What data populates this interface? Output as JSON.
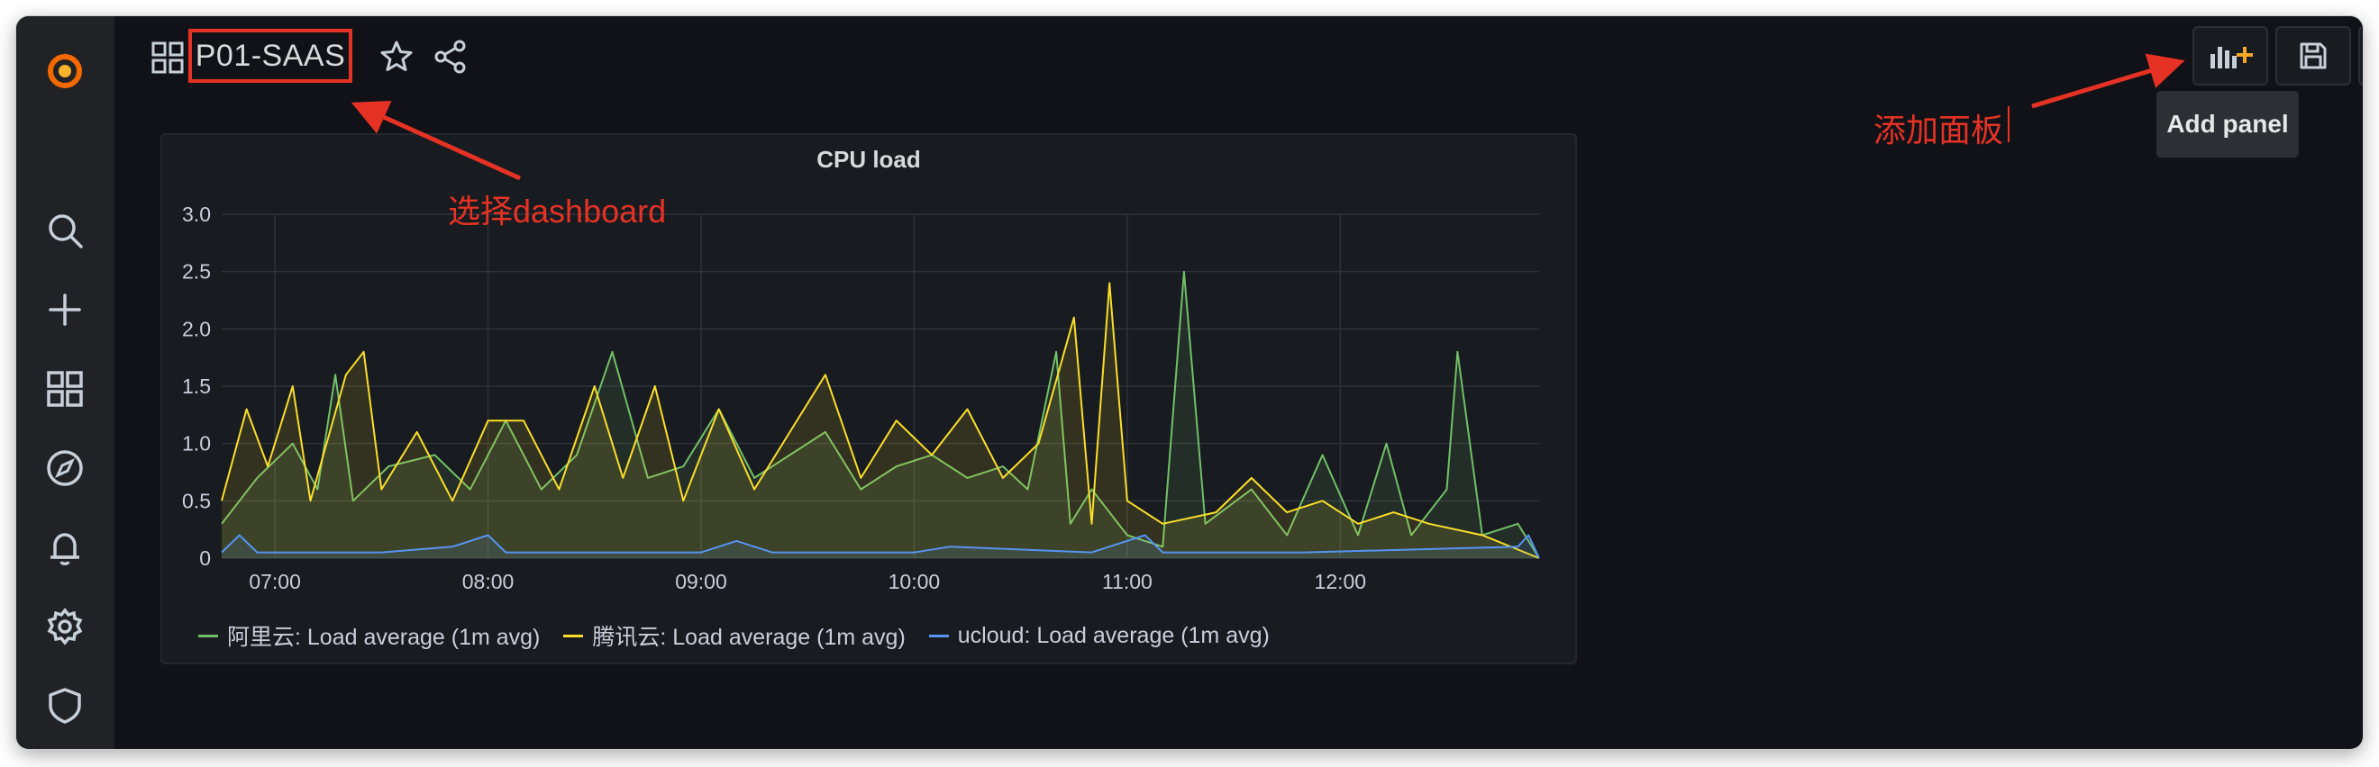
{
  "sidebar": {
    "icons": [
      "grafana-logo-icon",
      "search-icon",
      "plus-icon",
      "dashboards-icon",
      "explore-icon",
      "alerting-icon",
      "gear-icon",
      "shield-icon"
    ]
  },
  "header": {
    "title": "P01-SAAS",
    "tooltip": "Add panel"
  },
  "annotations": {
    "select_dashboard": "选择dashboard",
    "add_panel": "添加面板"
  },
  "colors": {
    "aliyun": "#73bf69",
    "tencent": "#fade2a",
    "ucloud": "#5794f2",
    "annotation": "#e53225",
    "panel_bg": "#181b1f"
  },
  "chart_data": {
    "type": "line",
    "title": "CPU load",
    "x_ticks": [
      "07:00",
      "08:00",
      "09:00",
      "10:00",
      "11:00",
      "12:00"
    ],
    "x_range": [
      "06:45",
      "12:56"
    ],
    "y_ticks": [
      "0",
      "0.5",
      "1.0",
      "1.5",
      "2.0",
      "2.5",
      "3.0"
    ],
    "ylim": [
      0,
      3.0
    ],
    "grid": true,
    "legend_position": "bottom-left",
    "series": [
      {
        "name": "阿里云: Load average (1m avg)",
        "color": "#73bf69",
        "points": [
          [
            "06:45",
            0.3
          ],
          [
            "06:55",
            0.7
          ],
          [
            "07:05",
            1.0
          ],
          [
            "07:12",
            0.6
          ],
          [
            "07:17",
            1.6
          ],
          [
            "07:22",
            0.5
          ],
          [
            "07:32",
            0.8
          ],
          [
            "07:45",
            0.9
          ],
          [
            "07:55",
            0.6
          ],
          [
            "08:05",
            1.2
          ],
          [
            "08:15",
            0.6
          ],
          [
            "08:25",
            0.9
          ],
          [
            "08:35",
            1.8
          ],
          [
            "08:45",
            0.7
          ],
          [
            "08:55",
            0.8
          ],
          [
            "09:05",
            1.3
          ],
          [
            "09:15",
            0.7
          ],
          [
            "09:25",
            0.9
          ],
          [
            "09:35",
            1.1
          ],
          [
            "09:45",
            0.6
          ],
          [
            "09:55",
            0.8
          ],
          [
            "10:05",
            0.9
          ],
          [
            "10:15",
            0.7
          ],
          [
            "10:25",
            0.8
          ],
          [
            "10:32",
            0.6
          ],
          [
            "10:40",
            1.8
          ],
          [
            "10:44",
            0.3
          ],
          [
            "10:50",
            0.6
          ],
          [
            "11:00",
            0.2
          ],
          [
            "11:10",
            0.1
          ],
          [
            "11:16",
            2.5
          ],
          [
            "11:22",
            0.3
          ],
          [
            "11:35",
            0.6
          ],
          [
            "11:45",
            0.2
          ],
          [
            "11:55",
            0.9
          ],
          [
            "12:05",
            0.2
          ],
          [
            "12:13",
            1.0
          ],
          [
            "12:20",
            0.2
          ],
          [
            "12:30",
            0.6
          ],
          [
            "12:33",
            1.8
          ],
          [
            "12:40",
            0.2
          ],
          [
            "12:50",
            0.3
          ],
          [
            "12:56",
            0.0
          ]
        ]
      },
      {
        "name": "腾讯云: Load average (1m avg)",
        "color": "#fade2a",
        "points": [
          [
            "06:45",
            0.5
          ],
          [
            "06:52",
            1.3
          ],
          [
            "06:58",
            0.8
          ],
          [
            "07:05",
            1.5
          ],
          [
            "07:10",
            0.5
          ],
          [
            "07:20",
            1.6
          ],
          [
            "07:25",
            1.8
          ],
          [
            "07:30",
            0.6
          ],
          [
            "07:40",
            1.1
          ],
          [
            "07:50",
            0.5
          ],
          [
            "08:00",
            1.2
          ],
          [
            "08:10",
            1.2
          ],
          [
            "08:20",
            0.6
          ],
          [
            "08:30",
            1.5
          ],
          [
            "08:38",
            0.7
          ],
          [
            "08:47",
            1.5
          ],
          [
            "08:55",
            0.5
          ],
          [
            "09:05",
            1.3
          ],
          [
            "09:15",
            0.6
          ],
          [
            "09:25",
            1.1
          ],
          [
            "09:35",
            1.6
          ],
          [
            "09:45",
            0.7
          ],
          [
            "09:55",
            1.2
          ],
          [
            "10:05",
            0.9
          ],
          [
            "10:15",
            1.3
          ],
          [
            "10:25",
            0.7
          ],
          [
            "10:35",
            1.0
          ],
          [
            "10:45",
            2.1
          ],
          [
            "10:50",
            0.3
          ],
          [
            "10:55",
            2.4
          ],
          [
            "11:00",
            0.5
          ],
          [
            "11:10",
            0.3
          ],
          [
            "11:25",
            0.4
          ],
          [
            "11:35",
            0.7
          ],
          [
            "11:45",
            0.4
          ],
          [
            "11:55",
            0.5
          ],
          [
            "12:05",
            0.3
          ],
          [
            "12:15",
            0.4
          ],
          [
            "12:25",
            0.3
          ],
          [
            "12:40",
            0.2
          ],
          [
            "12:56",
            0.0
          ]
        ]
      },
      {
        "name": "ucloud: Load average (1m avg)",
        "color": "#5794f2",
        "points": [
          [
            "06:45",
            0.05
          ],
          [
            "06:50",
            0.2
          ],
          [
            "06:55",
            0.05
          ],
          [
            "07:30",
            0.05
          ],
          [
            "07:50",
            0.1
          ],
          [
            "08:00",
            0.2
          ],
          [
            "08:05",
            0.05
          ],
          [
            "09:00",
            0.05
          ],
          [
            "09:10",
            0.15
          ],
          [
            "09:20",
            0.05
          ],
          [
            "10:00",
            0.05
          ],
          [
            "10:10",
            0.1
          ],
          [
            "10:50",
            0.05
          ],
          [
            "11:05",
            0.2
          ],
          [
            "11:10",
            0.05
          ],
          [
            "11:50",
            0.05
          ],
          [
            "12:50",
            0.1
          ],
          [
            "12:53",
            0.2
          ],
          [
            "12:56",
            0.0
          ]
        ]
      }
    ]
  }
}
